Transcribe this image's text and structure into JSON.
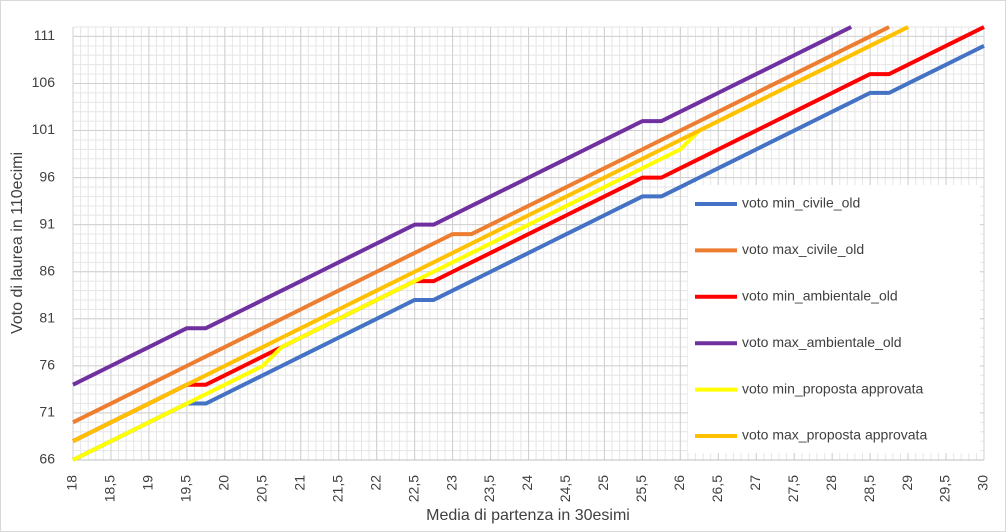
{
  "chart_data": {
    "type": "line",
    "xlabel": "Media di partenza in 30esimi",
    "ylabel": "Voto di laurea in 110ecimi",
    "x": [
      18,
      18.25,
      18.5,
      18.75,
      19,
      19.25,
      19.5,
      19.75,
      20,
      20.25,
      20.5,
      20.75,
      21,
      21.25,
      21.5,
      21.75,
      22,
      22.25,
      22.5,
      22.75,
      23,
      23.25,
      23.5,
      23.75,
      24,
      24.25,
      24.5,
      24.75,
      25,
      25.25,
      25.5,
      25.75,
      26,
      26.25,
      26.5,
      26.75,
      27,
      27.25,
      27.5,
      27.75,
      28,
      28.25,
      28.5,
      28.75,
      29,
      29.25,
      29.5,
      29.75,
      30
    ],
    "series": [
      {
        "name": "voto min_civile_old",
        "color": "#4472C4",
        "values": [
          66,
          67,
          68,
          69,
          70,
          71,
          72,
          72,
          73,
          74,
          75,
          76,
          77,
          78,
          79,
          80,
          81,
          82,
          83,
          83,
          84,
          85,
          86,
          87,
          88,
          89,
          90,
          91,
          92,
          93,
          94,
          94,
          95,
          96,
          97,
          98,
          99,
          100,
          101,
          102,
          103,
          104,
          105,
          105,
          106,
          107,
          108,
          109,
          110
        ]
      },
      {
        "name": "voto max_civile_old",
        "color": "#ED7D31",
        "values": [
          70,
          71,
          72,
          73,
          74,
          75,
          76,
          77,
          78,
          79,
          80,
          81,
          82,
          83,
          84,
          85,
          86,
          87,
          88,
          89,
          90,
          90,
          91,
          92,
          93,
          94,
          95,
          96,
          97,
          98,
          99,
          100,
          101,
          102,
          103,
          104,
          105,
          106,
          107,
          108,
          109,
          110,
          111,
          112,
          null,
          null,
          null,
          null,
          null
        ]
      },
      {
        "name": "voto min_ambientale_old",
        "color": "#FF0000",
        "values": [
          68,
          69,
          70,
          71,
          72,
          73,
          74,
          74,
          75,
          76,
          77,
          78,
          79,
          80,
          81,
          82,
          83,
          84,
          85,
          85,
          86,
          87,
          88,
          89,
          90,
          91,
          92,
          93,
          94,
          95,
          96,
          96,
          97,
          98,
          99,
          100,
          101,
          102,
          103,
          104,
          105,
          106,
          107,
          107,
          108,
          109,
          110,
          111,
          112
        ]
      },
      {
        "name": "voto max_ambientale_old",
        "color": "#7030A0",
        "values": [
          74,
          75,
          76,
          77,
          78,
          79,
          80,
          80,
          81,
          82,
          83,
          84,
          85,
          86,
          87,
          88,
          89,
          90,
          91,
          91,
          92,
          93,
          94,
          95,
          96,
          97,
          98,
          99,
          100,
          101,
          102,
          102,
          103,
          104,
          105,
          106,
          107,
          108,
          109,
          110,
          111,
          112,
          null,
          null,
          null,
          null,
          null,
          null,
          null
        ]
      },
      {
        "name": "voto min_proposta approvata",
        "color": "#FFFF00",
        "values": [
          66,
          67,
          68,
          69,
          70,
          71,
          72,
          73,
          74,
          75,
          76,
          78,
          79,
          80,
          81,
          82,
          83,
          84,
          85,
          86,
          87,
          88,
          89,
          90,
          91,
          92,
          93,
          94,
          95,
          96,
          97,
          98,
          99,
          101,
          102,
          103,
          104,
          105,
          106,
          107,
          108,
          109,
          110,
          111,
          112,
          null,
          null,
          null,
          null
        ]
      },
      {
        "name": "voto max_proposta approvata",
        "color": "#FFC000",
        "values": [
          68,
          69,
          70,
          71,
          72,
          73,
          74,
          75,
          76,
          77,
          78,
          79,
          80,
          81,
          82,
          83,
          84,
          85,
          86,
          87,
          88,
          89,
          90,
          91,
          92,
          93,
          94,
          95,
          96,
          97,
          98,
          99,
          100,
          101,
          102,
          103,
          104,
          105,
          106,
          107,
          108,
          109,
          110,
          111,
          112,
          null,
          null,
          null,
          null
        ]
      }
    ],
    "xlim": [
      18,
      30
    ],
    "ylim": [
      66,
      112
    ],
    "xticks": [
      18,
      {
        "value": 18.5,
        "label": "18,5"
      },
      19,
      {
        "value": 19.5,
        "label": "19,5"
      },
      20,
      {
        "value": 20.5,
        "label": "20,5"
      },
      21,
      {
        "value": 21.5,
        "label": "21,5"
      },
      22,
      {
        "value": 22.5,
        "label": "22,5"
      },
      23,
      {
        "value": 23.5,
        "label": "23,5"
      },
      24,
      {
        "value": 24.5,
        "label": "24,5"
      },
      25,
      {
        "value": 25.5,
        "label": "25,5"
      },
      26,
      {
        "value": 26.5,
        "label": "26,5"
      },
      27,
      {
        "value": 27.5,
        "label": "27,5"
      },
      28,
      {
        "value": 28.5,
        "label": "28,5"
      },
      29,
      {
        "value": 29.5,
        "label": "29,5"
      },
      30
    ],
    "yticks": [
      66,
      71,
      76,
      81,
      86,
      91,
      96,
      101,
      106,
      111
    ],
    "grid": true,
    "legend": "right"
  }
}
